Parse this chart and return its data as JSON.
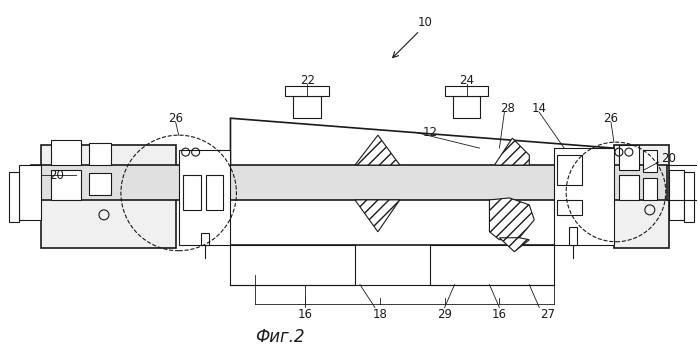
{
  "bg_color": "#ffffff",
  "line_color": "#1a1a1a",
  "title": "Фиг.2",
  "title_fontsize": 12,
  "label_fontsize": 8.5,
  "figsize": [
    6.98,
    3.54
  ],
  "dpi": 100
}
